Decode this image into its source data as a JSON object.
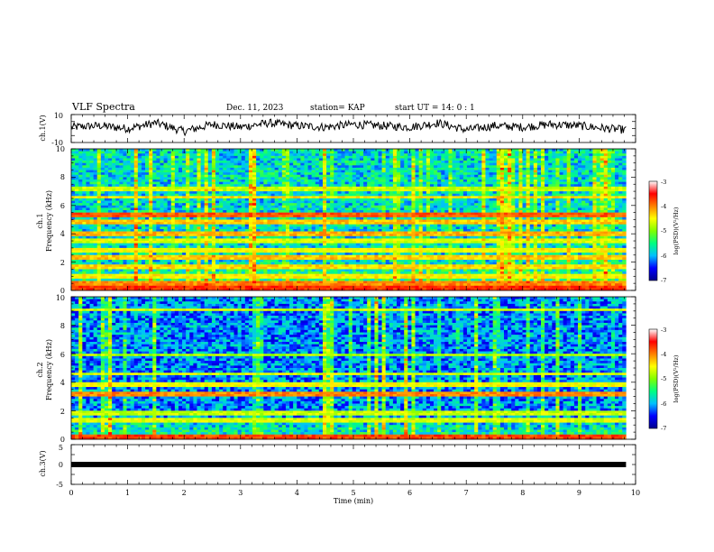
{
  "header": {
    "title": "VLF Spectra",
    "date": "Dec. 11, 2023",
    "station": "station= KAP",
    "start": "start  UT =   14: 0  : 1"
  },
  "chart_data": [
    {
      "type": "line",
      "id": "ch1-waveform",
      "ylabel": "ch.1(V)",
      "ylim": [
        -10,
        10
      ],
      "yticks": [
        "10",
        "-10"
      ],
      "xlim": [
        0,
        10
      ],
      "x": [
        0,
        0.5,
        1,
        1.5,
        2,
        2.5,
        3,
        3.5,
        4,
        4.5,
        5,
        5.5,
        6,
        6.5,
        7,
        7.5,
        8,
        8.5,
        9,
        9.5,
        9.83
      ],
      "values": [
        1,
        2,
        0,
        4,
        -2,
        3,
        1,
        4,
        2,
        1,
        3,
        2,
        1,
        4,
        -1,
        2,
        1,
        3,
        2,
        0,
        -1
      ]
    },
    {
      "type": "heatmap",
      "id": "ch1-spectrogram",
      "ylabel_line1": "ch.1",
      "ylabel_line2": "Frequency (kHz)",
      "ylim": [
        0,
        10
      ],
      "yticks": [
        "0",
        "2",
        "4",
        "6",
        "8",
        "10"
      ],
      "xlim": [
        0,
        10
      ],
      "data_xmax": 9.83,
      "colorbar": {
        "label": "log(PSD)(V²/Hz)",
        "range": [
          -7,
          -3
        ],
        "ticks": [
          "-3",
          "-4",
          "-5",
          "-6",
          "-7"
        ]
      },
      "bands_khz": [
        {
          "f": 0.2,
          "level": -3.2
        },
        {
          "f": 0.5,
          "level": -3.6
        },
        {
          "f": 1.0,
          "level": -4.1
        },
        {
          "f": 1.7,
          "level": -4.0
        },
        {
          "f": 2.3,
          "level": -3.9
        },
        {
          "f": 2.8,
          "level": -4.2
        },
        {
          "f": 3.5,
          "level": -4.3
        },
        {
          "f": 4.0,
          "level": -3.8
        },
        {
          "f": 4.8,
          "level": -3.9
        },
        {
          "f": 5.3,
          "level": -3.4
        },
        {
          "f": 6.6,
          "level": -4.0
        },
        {
          "f": 7.2,
          "level": -4.4
        }
      ]
    },
    {
      "type": "heatmap",
      "id": "ch2-spectrogram",
      "ylabel_line1": "ch.2",
      "ylabel_line2": "Frequency (kHz)",
      "ylim": [
        0,
        10
      ],
      "yticks": [
        "0",
        "2",
        "4",
        "6",
        "8",
        "10"
      ],
      "xlim": [
        0,
        10
      ],
      "data_xmax": 9.83,
      "colorbar": {
        "label": "log(PSD)(V²/Hz)",
        "range": [
          -7,
          -3
        ],
        "ticks": [
          "-3",
          "-4",
          "-5",
          "-6",
          "-7"
        ]
      },
      "bands_khz": [
        {
          "f": 0.2,
          "level": -3.3
        },
        {
          "f": 1.3,
          "level": -4.3
        },
        {
          "f": 1.9,
          "level": -4.4
        },
        {
          "f": 3.2,
          "level": -3.6
        },
        {
          "f": 3.9,
          "level": -4.2
        },
        {
          "f": 4.6,
          "level": -4.3
        },
        {
          "f": 5.9,
          "level": -4.5
        },
        {
          "f": 9.1,
          "level": -4.3
        }
      ]
    },
    {
      "type": "line",
      "id": "ch3-waveform",
      "ylabel": "ch.3(V)",
      "ylim": [
        -5,
        5
      ],
      "yticks": [
        "5",
        "0",
        "-5"
      ],
      "xlim": [
        0,
        10
      ],
      "x": [
        0,
        9.83
      ],
      "values": [
        0,
        0
      ]
    }
  ],
  "xaxis": {
    "label": "Time  (min)",
    "ticks": [
      "0",
      "1",
      "2",
      "3",
      "4",
      "5",
      "6",
      "7",
      "8",
      "9",
      "10"
    ]
  },
  "colors": {
    "colormap": [
      "#00008b",
      "#0000ff",
      "#00bfff",
      "#00ff80",
      "#80ff00",
      "#ffff00",
      "#ff8000",
      "#ff0000",
      "#ffffff"
    ]
  }
}
